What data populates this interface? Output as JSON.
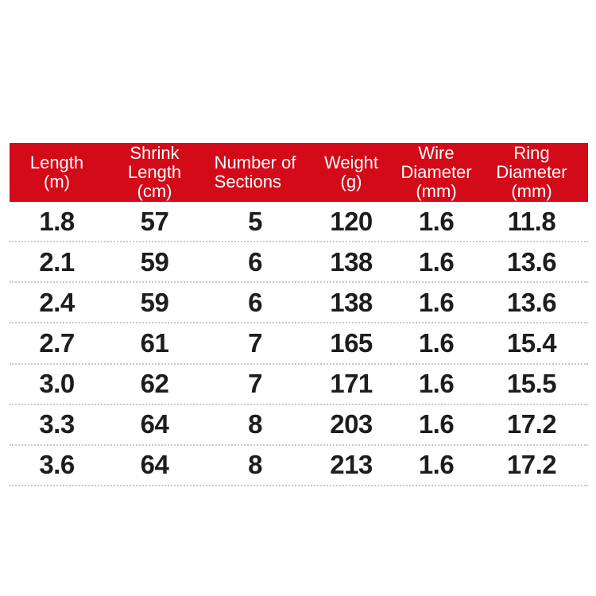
{
  "page": {
    "background": "#ffffff"
  },
  "table": {
    "header_bg": "#d30a18",
    "header_text_color": "#ffffff",
    "body_text_color": "#1d1d1d",
    "divider_color": "#c9c9c9",
    "columns": [
      {
        "id": "length-m",
        "header": "Length\n(m)"
      },
      {
        "id": "shrink-length-cm",
        "header": "Shrink\nLength\n(cm)"
      },
      {
        "id": "number-of-sections",
        "header": "Number of\nSections"
      },
      {
        "id": "weight-g",
        "header": "Weight\n(g)"
      },
      {
        "id": "wire-diameter-mm",
        "header": "Wire\nDiameter\n(mm)"
      },
      {
        "id": "ring-diameter-mm",
        "header": "Ring\nDiameter\n(mm)"
      }
    ],
    "rows": [
      [
        "1.8",
        "57",
        "5",
        "120",
        "1.6",
        "11.8"
      ],
      [
        "2.1",
        "59",
        "6",
        "138",
        "1.6",
        "13.6"
      ],
      [
        "2.4",
        "59",
        "6",
        "138",
        "1.6",
        "13.6"
      ],
      [
        "2.7",
        "61",
        "7",
        "165",
        "1.6",
        "15.4"
      ],
      [
        "3.0",
        "62",
        "7",
        "171",
        "1.6",
        "15.5"
      ],
      [
        "3.3",
        "64",
        "8",
        "203",
        "1.6",
        "17.2"
      ],
      [
        "3.6",
        "64",
        "8",
        "213",
        "1.6",
        "17.2"
      ]
    ]
  },
  "chart_data": {
    "type": "table",
    "title": "",
    "columns": [
      "Length (m)",
      "Shrink Length (cm)",
      "Number of Sections",
      "Weight (g)",
      "Wire Diameter (mm)",
      "Ring Diameter (mm)"
    ],
    "rows": [
      [
        1.8,
        57,
        5,
        120,
        1.6,
        11.8
      ],
      [
        2.1,
        59,
        6,
        138,
        1.6,
        13.6
      ],
      [
        2.4,
        59,
        6,
        138,
        1.6,
        13.6
      ],
      [
        2.7,
        61,
        7,
        165,
        1.6,
        15.4
      ],
      [
        3.0,
        62,
        7,
        171,
        1.6,
        15.5
      ],
      [
        3.3,
        64,
        8,
        203,
        1.6,
        17.2
      ],
      [
        3.6,
        64,
        8,
        213,
        1.6,
        17.2
      ]
    ],
    "layout_hints": {
      "header_bg": "#d30a18",
      "row_separator": "dotted",
      "grid": "horizontal-only"
    }
  }
}
